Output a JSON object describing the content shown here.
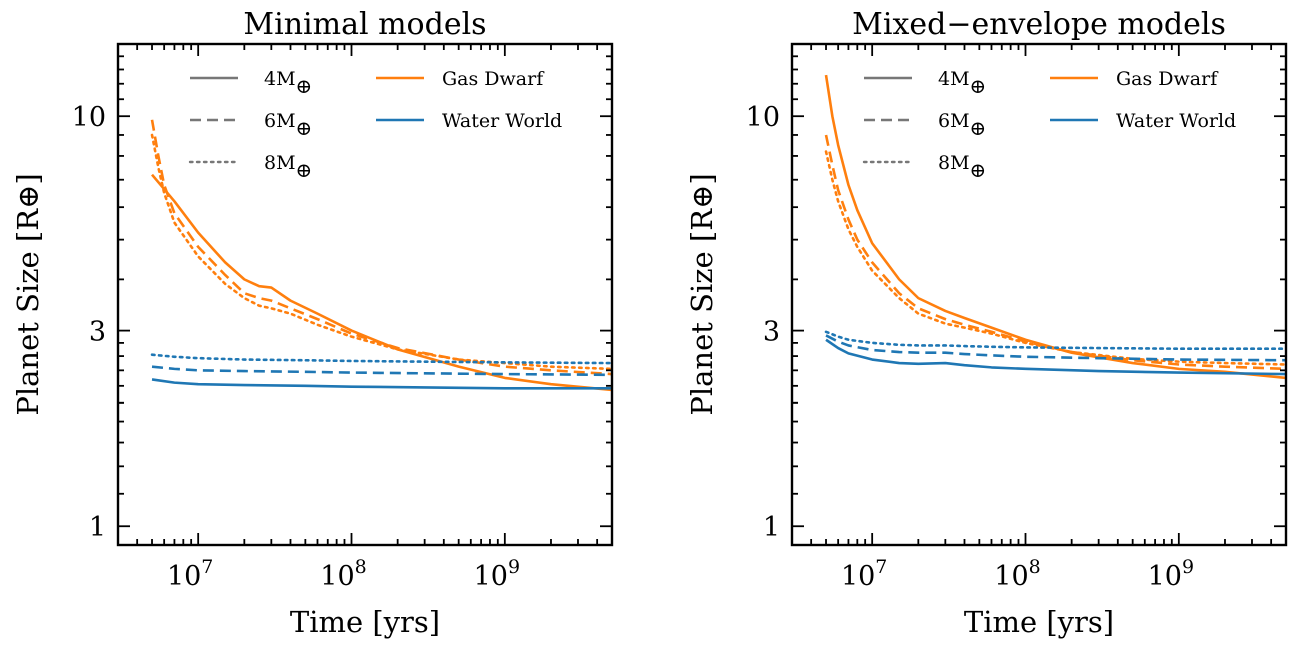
{
  "chart_data": [
    {
      "type": "line",
      "title": "Minimal models",
      "xlabel": "Time [yrs]",
      "ylabel": "Planet Size [R⊕]",
      "xscale": "log",
      "yscale": "log",
      "xlim": [
        3000000,
        5000000000
      ],
      "ylim": [
        0.9,
        15
      ],
      "xticks": [
        {
          "value": 10000000,
          "label": "7"
        },
        {
          "value": 100000000,
          "label": "8"
        },
        {
          "value": 1000000000,
          "label": "9"
        }
      ],
      "yticks": [
        {
          "value": 1,
          "label": "1"
        },
        {
          "value": 3,
          "label": "3"
        },
        {
          "value": 10,
          "label": "10"
        }
      ],
      "legend": {
        "position": "top",
        "mass_entries": [
          {
            "base": "4M",
            "sub": "⊕",
            "dash": "solid"
          },
          {
            "base": "6M",
            "sub": "⊕",
            "dash": "dashed"
          },
          {
            "base": "8M",
            "sub": "⊕",
            "dash": "dotted"
          }
        ],
        "type_entries": [
          {
            "label": "Gas Dwarf",
            "color": "#ff7f0e"
          },
          {
            "label": "Water World",
            "color": "#1f77b4"
          }
        ]
      },
      "series": [
        {
          "name": "Gas Dwarf 4M⊕",
          "color": "#ff7f0e",
          "dash": "solid",
          "x": [
            5000000,
            7000000,
            10000000,
            15000000,
            20000000,
            25000000,
            30000000,
            40000000,
            60000000,
            100000000,
            200000000,
            500000000,
            1000000000,
            2000000000,
            5000000000
          ],
          "y": [
            7.2,
            6.2,
            5.2,
            4.4,
            4.0,
            3.85,
            3.82,
            3.55,
            3.3,
            3.0,
            2.7,
            2.45,
            2.3,
            2.22,
            2.15
          ]
        },
        {
          "name": "Gas Dwarf 6M⊕",
          "color": "#ff7f0e",
          "dash": "dashed",
          "x": [
            5000000,
            5500000,
            6000000,
            7000000,
            10000000,
            15000000,
            20000000,
            25000000,
            30000000,
            40000000,
            60000000,
            100000000,
            200000000,
            500000000,
            1000000000,
            2000000000,
            5000000000
          ],
          "y": [
            9.8,
            8.0,
            6.8,
            5.8,
            4.8,
            4.1,
            3.7,
            3.6,
            3.55,
            3.4,
            3.2,
            2.95,
            2.72,
            2.55,
            2.45,
            2.4,
            2.35
          ]
        },
        {
          "name": "Gas Dwarf 8M⊕",
          "color": "#ff7f0e",
          "dash": "dotted",
          "x": [
            5000000,
            5500000,
            6000000,
            7000000,
            10000000,
            15000000,
            20000000,
            25000000,
            30000000,
            40000000,
            60000000,
            100000000,
            200000000,
            500000000,
            1000000000,
            2000000000,
            5000000000
          ],
          "y": [
            9.0,
            7.5,
            6.5,
            5.5,
            4.55,
            3.9,
            3.6,
            3.45,
            3.4,
            3.3,
            3.1,
            2.9,
            2.7,
            2.55,
            2.5,
            2.45,
            2.42
          ]
        },
        {
          "name": "Water World 4M⊕",
          "color": "#1f77b4",
          "dash": "solid",
          "x": [
            5000000,
            7000000,
            10000000,
            20000000,
            50000000,
            100000000,
            300000000,
            1000000000,
            5000000000
          ],
          "y": [
            2.28,
            2.24,
            2.22,
            2.21,
            2.2,
            2.19,
            2.18,
            2.17,
            2.17
          ]
        },
        {
          "name": "Water World 6M⊕",
          "color": "#1f77b4",
          "dash": "dashed",
          "x": [
            5000000,
            7000000,
            10000000,
            20000000,
            50000000,
            100000000,
            300000000,
            1000000000,
            5000000000
          ],
          "y": [
            2.45,
            2.42,
            2.4,
            2.39,
            2.38,
            2.37,
            2.36,
            2.35,
            2.34
          ]
        },
        {
          "name": "Water World 8M⊕",
          "color": "#1f77b4",
          "dash": "dotted",
          "x": [
            5000000,
            7000000,
            10000000,
            20000000,
            50000000,
            100000000,
            300000000,
            1000000000,
            5000000000
          ],
          "y": [
            2.62,
            2.59,
            2.57,
            2.55,
            2.54,
            2.53,
            2.52,
            2.51,
            2.5
          ]
        }
      ]
    },
    {
      "type": "line",
      "title": "Mixed−envelope models",
      "xlabel": "Time [yrs]",
      "ylabel": "Planet Size [R⊕]",
      "xscale": "log",
      "yscale": "log",
      "xlim": [
        3000000,
        5000000000
      ],
      "ylim": [
        0.9,
        15
      ],
      "xticks": [
        {
          "value": 10000000,
          "label": "7"
        },
        {
          "value": 100000000,
          "label": "8"
        },
        {
          "value": 1000000000,
          "label": "9"
        }
      ],
      "yticks": [
        {
          "value": 1,
          "label": "1"
        },
        {
          "value": 3,
          "label": "3"
        },
        {
          "value": 10,
          "label": "10"
        }
      ],
      "legend": {
        "position": "top",
        "mass_entries": [
          {
            "base": "4M",
            "sub": "⊕",
            "dash": "solid"
          },
          {
            "base": "6M",
            "sub": "⊕",
            "dash": "dashed"
          },
          {
            "base": "8M",
            "sub": "⊕",
            "dash": "dotted"
          }
        ],
        "type_entries": [
          {
            "label": "Gas Dwarf",
            "color": "#ff7f0e"
          },
          {
            "label": "Water World",
            "color": "#1f77b4"
          }
        ]
      },
      "series": [
        {
          "name": "Gas Dwarf 4M⊕",
          "color": "#ff7f0e",
          "dash": "solid",
          "x": [
            5000000,
            5500000,
            6000000,
            7000000,
            8000000,
            10000000,
            15000000,
            20000000,
            30000000,
            40000000,
            60000000,
            100000000,
            200000000,
            500000000,
            1000000000,
            2000000000,
            5000000000
          ],
          "y": [
            12.6,
            10.0,
            8.5,
            6.8,
            5.9,
            4.9,
            4.0,
            3.6,
            3.35,
            3.22,
            3.05,
            2.85,
            2.65,
            2.5,
            2.42,
            2.38,
            2.3
          ]
        },
        {
          "name": "Gas Dwarf 6M⊕",
          "color": "#ff7f0e",
          "dash": "dashed",
          "x": [
            5000000,
            5500000,
            6000000,
            7000000,
            8000000,
            10000000,
            15000000,
            20000000,
            30000000,
            40000000,
            60000000,
            100000000,
            200000000,
            500000000,
            1000000000,
            2000000000,
            5000000000
          ],
          "y": [
            9.0,
            7.6,
            6.6,
            5.6,
            5.0,
            4.4,
            3.7,
            3.4,
            3.2,
            3.1,
            2.98,
            2.82,
            2.66,
            2.54,
            2.48,
            2.45,
            2.42
          ]
        },
        {
          "name": "Gas Dwarf 8M⊕",
          "color": "#ff7f0e",
          "dash": "dotted",
          "x": [
            5000000,
            5500000,
            6000000,
            7000000,
            8000000,
            10000000,
            15000000,
            20000000,
            30000000,
            40000000,
            60000000,
            100000000,
            200000000,
            500000000,
            1000000000,
            2000000000,
            5000000000
          ],
          "y": [
            8.2,
            7.0,
            6.2,
            5.3,
            4.8,
            4.2,
            3.6,
            3.3,
            3.12,
            3.05,
            2.95,
            2.8,
            2.66,
            2.56,
            2.52,
            2.5,
            2.48
          ]
        },
        {
          "name": "Water World 4M⊕",
          "color": "#1f77b4",
          "dash": "solid",
          "x": [
            5000000,
            6000000,
            7000000,
            10000000,
            15000000,
            20000000,
            30000000,
            40000000,
            60000000,
            100000000,
            300000000,
            1000000000,
            5000000000
          ],
          "y": [
            2.85,
            2.72,
            2.64,
            2.55,
            2.5,
            2.49,
            2.5,
            2.47,
            2.44,
            2.42,
            2.39,
            2.37,
            2.35
          ]
        },
        {
          "name": "Water World 6M⊕",
          "color": "#1f77b4",
          "dash": "dashed",
          "x": [
            5000000,
            6000000,
            7000000,
            10000000,
            15000000,
            20000000,
            30000000,
            40000000,
            60000000,
            100000000,
            300000000,
            1000000000,
            5000000000
          ],
          "y": [
            2.92,
            2.82,
            2.76,
            2.69,
            2.66,
            2.65,
            2.65,
            2.63,
            2.61,
            2.59,
            2.57,
            2.55,
            2.54
          ]
        },
        {
          "name": "Water World 8M⊕",
          "color": "#1f77b4",
          "dash": "dotted",
          "x": [
            5000000,
            6000000,
            7000000,
            10000000,
            15000000,
            20000000,
            30000000,
            40000000,
            60000000,
            100000000,
            300000000,
            1000000000,
            5000000000
          ],
          "y": [
            2.98,
            2.9,
            2.85,
            2.8,
            2.77,
            2.76,
            2.76,
            2.75,
            2.74,
            2.73,
            2.72,
            2.71,
            2.71
          ]
        }
      ]
    }
  ]
}
